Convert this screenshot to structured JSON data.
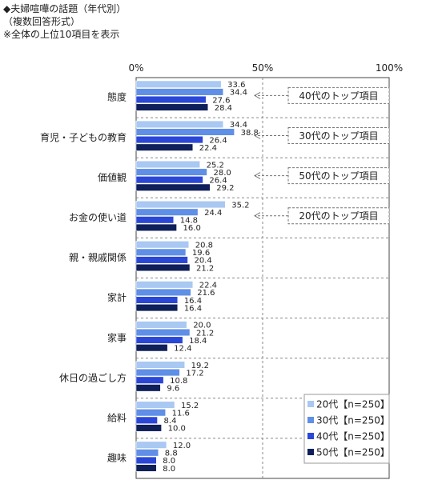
{
  "header": {
    "title": "◆夫婦喧嘩の話題（年代別）",
    "subtitle": "（複数回答形式）",
    "note": "※全体の上位10項目を表示"
  },
  "chart_data": {
    "type": "bar",
    "orientation": "horizontal",
    "categories": [
      "態度",
      "育児・子どもの教育",
      "価値観",
      "お金の使い道",
      "親・親戚関係",
      "家計",
      "家事",
      "休日の過ごし方",
      "給料",
      "趣味"
    ],
    "series": [
      {
        "name": "20代【n=250】",
        "color": "#a9c8f2",
        "values": [
          33.6,
          34.4,
          25.2,
          35.2,
          20.8,
          22.4,
          20.0,
          19.2,
          15.2,
          12.0
        ]
      },
      {
        "name": "30代【n=250】",
        "color": "#5f8fe6",
        "values": [
          34.4,
          38.8,
          28.0,
          24.4,
          19.6,
          21.6,
          21.2,
          17.2,
          11.6,
          8.8
        ]
      },
      {
        "name": "40代【n=250】",
        "color": "#2b47d6",
        "values": [
          27.6,
          26.4,
          26.4,
          14.8,
          20.4,
          16.4,
          18.4,
          10.8,
          8.4,
          8.0
        ]
      },
      {
        "name": "50代【n=250】",
        "color": "#0f1f5a",
        "values": [
          28.4,
          22.4,
          29.2,
          16.0,
          21.2,
          16.4,
          12.4,
          9.6,
          10.0,
          8.0
        ]
      }
    ],
    "x_ticks": [
      "0%",
      "50%",
      "100%"
    ],
    "xlim": [
      0,
      100
    ],
    "grid": true,
    "legend_position": "bottom-right",
    "annotations": [
      {
        "category": "態度",
        "text": "40代のトップ項目"
      },
      {
        "category": "育児・子どもの教育",
        "text": "30代のトップ項目"
      },
      {
        "category": "価値観",
        "text": "50代のトップ項目"
      },
      {
        "category": "お金の使い道",
        "text": "20代のトップ項目"
      }
    ]
  }
}
